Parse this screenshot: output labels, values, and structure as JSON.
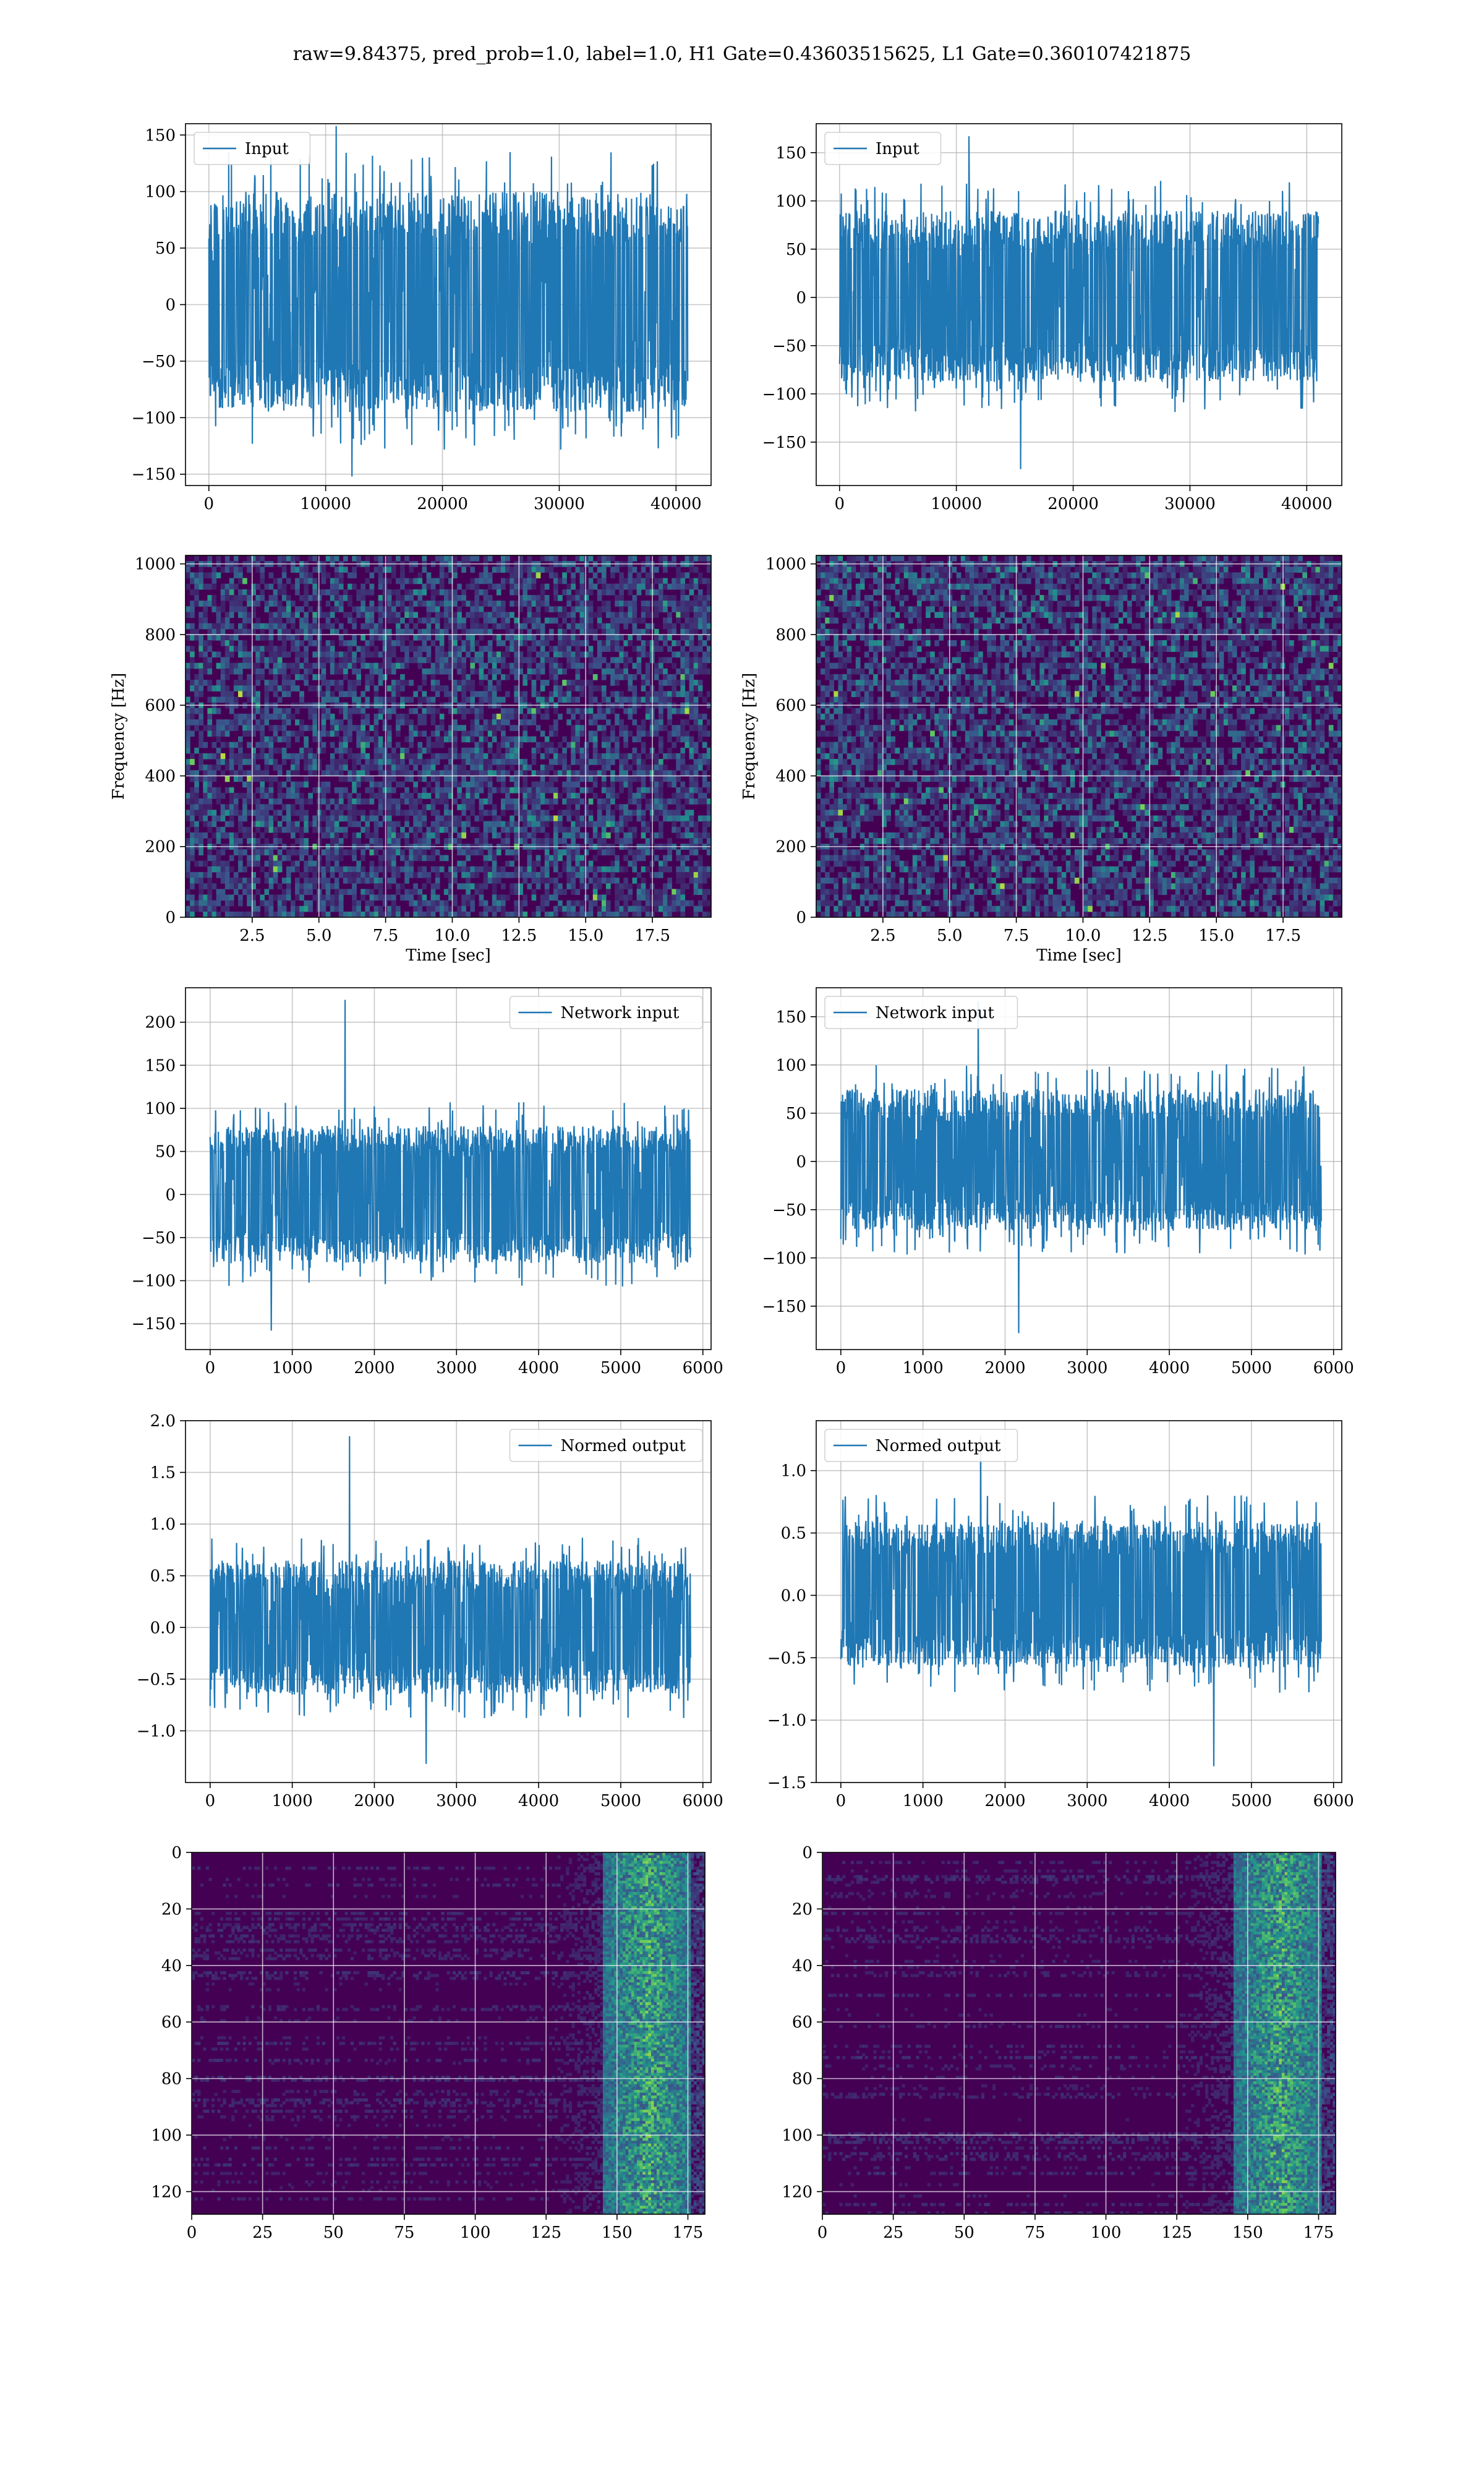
{
  "title": "raw=9.84375, pred_prob=1.0, label=1.0, H1 Gate=0.43603515625, L1 Gate=0.360107421875",
  "colors": {
    "line": "#1f77b4",
    "grid": "#b0b0b0",
    "spec_low": "#440154",
    "spec_mid": "#21918c",
    "spec_high": "#fde725"
  },
  "chart_data": [
    {
      "id": "r1c1",
      "type": "line",
      "title": "",
      "xlabel": "",
      "ylabel": "",
      "legend": "Input",
      "legend_position": "upper left",
      "xlim": [
        -2000,
        43000
      ],
      "ylim": [
        -160,
        160
      ],
      "xticks": [
        0,
        10000,
        20000,
        30000,
        40000
      ],
      "yticks": [
        -150,
        -100,
        -50,
        0,
        50,
        100,
        150
      ],
      "series": [
        {
          "name": "Input",
          "x_range": [
            0,
            41000
          ],
          "envelope_high": 100,
          "envelope_low": -95,
          "spike_max": 158,
          "spike_min": -152,
          "noise_seed": 11
        }
      ]
    },
    {
      "id": "r1c2",
      "type": "line",
      "title": "",
      "xlabel": "",
      "ylabel": "",
      "legend": "Input",
      "legend_position": "upper left",
      "xlim": [
        -2000,
        43000
      ],
      "ylim": [
        -195,
        180
      ],
      "xticks": [
        0,
        10000,
        20000,
        30000,
        40000
      ],
      "yticks": [
        -150,
        -100,
        -50,
        0,
        50,
        100,
        150
      ],
      "series": [
        {
          "name": "Input",
          "x_range": [
            0,
            41000
          ],
          "envelope_high": 90,
          "envelope_low": -88,
          "spike_max": 167,
          "spike_min": -178,
          "noise_seed": 23
        }
      ]
    },
    {
      "id": "r2c1",
      "type": "heatmap",
      "title": "",
      "xlabel": "Time [sec]",
      "ylabel": "Frequency [Hz]",
      "xlim": [
        0,
        19.7
      ],
      "ylim": [
        0,
        1024
      ],
      "xticks": [
        2.5,
        5.0,
        7.5,
        10.0,
        12.5,
        15.0,
        17.5
      ],
      "yticks": [
        0,
        200,
        400,
        600,
        800,
        1000
      ],
      "grid_cols": 120,
      "grid_rows": 64,
      "noise_seed": 37
    },
    {
      "id": "r2c2",
      "type": "heatmap",
      "title": "",
      "xlabel": "Time [sec]",
      "ylabel": "Frequency [Hz]",
      "xlim": [
        0,
        19.7
      ],
      "ylim": [
        0,
        1024
      ],
      "xticks": [
        2.5,
        5.0,
        7.5,
        10.0,
        12.5,
        15.0,
        17.5
      ],
      "yticks": [
        0,
        200,
        400,
        600,
        800,
        1000
      ],
      "grid_cols": 120,
      "grid_rows": 64,
      "noise_seed": 41
    },
    {
      "id": "r3c1",
      "type": "line",
      "title": "",
      "xlabel": "",
      "ylabel": "",
      "legend": "Network input",
      "legend_position": "upper right",
      "xlim": [
        -300,
        6100
      ],
      "ylim": [
        -180,
        240
      ],
      "xticks": [
        0,
        1000,
        2000,
        3000,
        4000,
        5000,
        6000
      ],
      "yticks": [
        -150,
        -100,
        -50,
        0,
        50,
        100,
        150,
        200
      ],
      "series": [
        {
          "name": "Network input",
          "x_range": [
            0,
            5850
          ],
          "envelope_high": 80,
          "envelope_low": -80,
          "spike_max": 226,
          "spike_min": -158,
          "noise_seed": 53
        }
      ]
    },
    {
      "id": "r3c2",
      "type": "line",
      "title": "",
      "xlabel": "",
      "ylabel": "",
      "legend": "Network input",
      "legend_position": "upper left",
      "xlim": [
        -300,
        6100
      ],
      "ylim": [
        -195,
        180
      ],
      "xticks": [
        0,
        1000,
        2000,
        3000,
        4000,
        5000,
        6000
      ],
      "yticks": [
        -150,
        -100,
        -50,
        0,
        50,
        100,
        150
      ],
      "series": [
        {
          "name": "Network input",
          "x_range": [
            0,
            5850
          ],
          "envelope_high": 75,
          "envelope_low": -72,
          "spike_max": 166,
          "spike_min": -178,
          "noise_seed": 67
        }
      ]
    },
    {
      "id": "r4c1",
      "type": "line",
      "title": "",
      "xlabel": "",
      "ylabel": "",
      "legend": "Normed output",
      "legend_position": "upper right",
      "xlim": [
        -300,
        6100
      ],
      "ylim": [
        -1.5,
        2.0
      ],
      "xticks": [
        0,
        1000,
        2000,
        3000,
        4000,
        5000,
        6000
      ],
      "yticks": [
        -1.0,
        -0.5,
        0.0,
        0.5,
        1.0,
        1.5,
        2.0
      ],
      "series": [
        {
          "name": "Normed output",
          "x_range": [
            0,
            5850
          ],
          "envelope_high": 0.65,
          "envelope_low": -0.65,
          "spike_max": 1.85,
          "spike_min": -1.32,
          "noise_seed": 79
        }
      ]
    },
    {
      "id": "r4c2",
      "type": "line",
      "title": "",
      "xlabel": "",
      "ylabel": "",
      "legend": "Normed output",
      "legend_position": "upper left",
      "xlim": [
        -300,
        6100
      ],
      "ylim": [
        -1.5,
        1.4
      ],
      "xticks": [
        0,
        1000,
        2000,
        3000,
        4000,
        5000,
        6000
      ],
      "yticks": [
        -1.5,
        -1.0,
        -0.5,
        0.0,
        0.5,
        1.0
      ],
      "series": [
        {
          "name": "Normed output",
          "x_range": [
            0,
            5850
          ],
          "envelope_high": 0.6,
          "envelope_low": -0.58,
          "spike_max": 1.28,
          "spike_min": -1.37,
          "noise_seed": 83
        }
      ]
    },
    {
      "id": "r5c1",
      "type": "heatmap",
      "title": "",
      "xlabel": "",
      "ylabel": "",
      "y_inverted": true,
      "xlim": [
        0,
        181
      ],
      "ylim": [
        128,
        0
      ],
      "xticks": [
        0,
        25,
        50,
        75,
        100,
        125,
        150,
        175
      ],
      "yticks": [
        0,
        20,
        40,
        60,
        80,
        100,
        120
      ],
      "grid_cols": 181,
      "grid_rows": 128,
      "noise_seed": 97
    },
    {
      "id": "r5c2",
      "type": "heatmap",
      "title": "",
      "xlabel": "",
      "ylabel": "",
      "y_inverted": true,
      "xlim": [
        0,
        181
      ],
      "ylim": [
        128,
        0
      ],
      "xticks": [
        0,
        25,
        50,
        75,
        100,
        125,
        150,
        175
      ],
      "yticks": [
        0,
        20,
        40,
        60,
        80,
        100,
        120
      ],
      "grid_cols": 181,
      "grid_rows": 128,
      "noise_seed": 101
    }
  ]
}
